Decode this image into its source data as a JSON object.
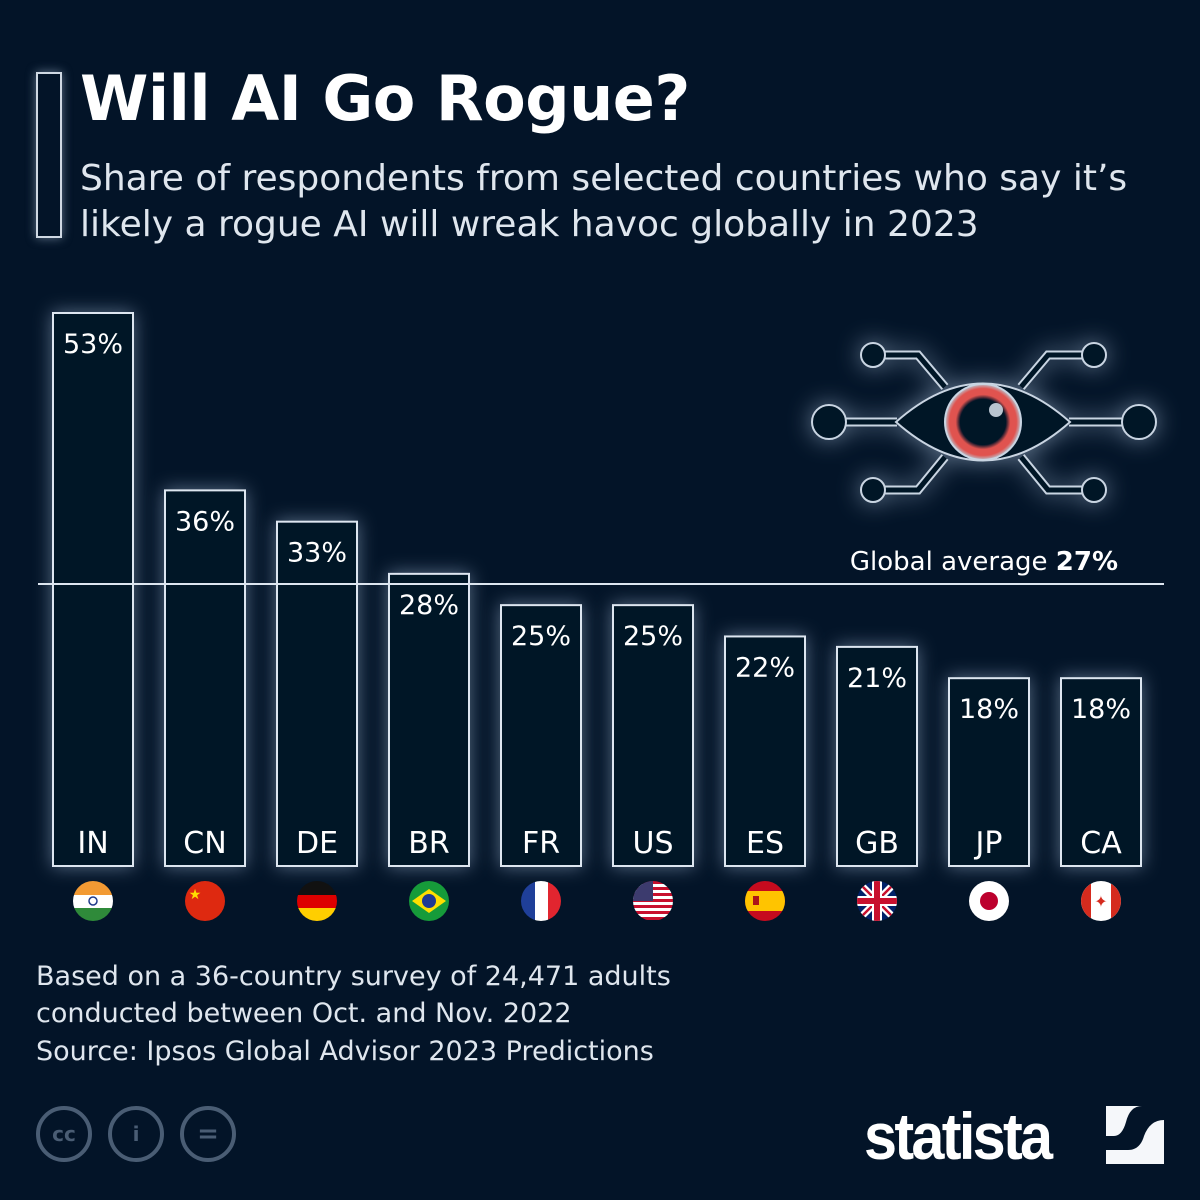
{
  "title": "Will AI Go Rogue?",
  "subtitle": "Share of respondents from selected countries who say it’s likely a rogue AI will wreak havoc globally in 2023",
  "note": "Based on a 36-country survey of 24,471 adults conducted between Oct. and Nov. 2022",
  "source": "Source: Ipsos Global Advisor 2023 Predictions",
  "license_icons": [
    "cc-icon",
    "attribution-icon",
    "no-derivatives-icon"
  ],
  "brand": "statista",
  "colors": {
    "background": "#031428",
    "bar_outline": "#dde6f0",
    "eye_iris": "#e0534f"
  },
  "chart_data": {
    "type": "bar",
    "categories": [
      "IN",
      "CN",
      "DE",
      "BR",
      "FR",
      "US",
      "ES",
      "GB",
      "JP",
      "CA"
    ],
    "values": [
      53,
      36,
      33,
      28,
      25,
      25,
      22,
      21,
      18,
      18
    ],
    "value_labels": [
      "53%",
      "36%",
      "33%",
      "28%",
      "25%",
      "25%",
      "22%",
      "21%",
      "18%",
      "18%"
    ],
    "flags": [
      "india-flag",
      "china-flag",
      "germany-flag",
      "brazil-flag",
      "france-flag",
      "usa-flag",
      "spain-flag",
      "uk-flag",
      "japan-flag",
      "canada-flag"
    ],
    "unit": "%",
    "ylim": [
      0,
      53
    ],
    "grid": false,
    "reference_line": {
      "label": "Global average",
      "value": 27,
      "value_label": "27%"
    }
  }
}
